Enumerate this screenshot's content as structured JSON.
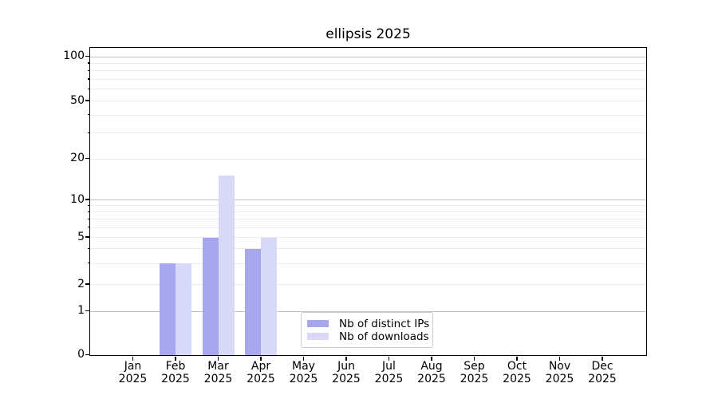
{
  "figure": {
    "title": "ellipsis 2025"
  },
  "chart_data": {
    "type": "bar",
    "title": "ellipsis 2025",
    "categories": [
      "Jan 2025",
      "Feb 2025",
      "Mar 2025",
      "Apr 2025",
      "May 2025",
      "Jun 2025",
      "Jul 2025",
      "Aug 2025",
      "Sep 2025",
      "Oct 2025",
      "Nov 2025",
      "Dec 2025"
    ],
    "series": [
      {
        "name": "Nb of distinct IPs",
        "color": "#a7a7f0",
        "values": [
          0,
          3,
          5,
          4,
          0,
          0,
          0,
          0,
          0,
          0,
          0,
          0
        ]
      },
      {
        "name": "Nb of downloads",
        "color": "#d8d8f7",
        "values": [
          0,
          3,
          15,
          5,
          0,
          0,
          0,
          0,
          0,
          0,
          0,
          0
        ]
      }
    ],
    "yscale": "log",
    "yticks": [
      0,
      1,
      2,
      5,
      10,
      20,
      50,
      100
    ],
    "y_major_gridlines": [
      1,
      10,
      100
    ],
    "y_minor_gridlines": [
      2,
      3,
      4,
      5,
      6,
      7,
      8,
      9,
      20,
      30,
      40,
      50,
      60,
      70,
      80,
      90
    ],
    "ylim": [
      0,
      113
    ],
    "xlabel": "",
    "ylabel": "",
    "grid": true,
    "legend_position": "lower center inside"
  },
  "colors": {
    "background": "#ffffff",
    "axis": "#000000",
    "text": "#000000",
    "grid_major": "#c2c2c2",
    "grid_minor": "#ebebeb",
    "legend_border": "#cccccc",
    "bar_distinct_ips": "#a7a7f0",
    "bar_downloads": "#d8d8f7"
  }
}
